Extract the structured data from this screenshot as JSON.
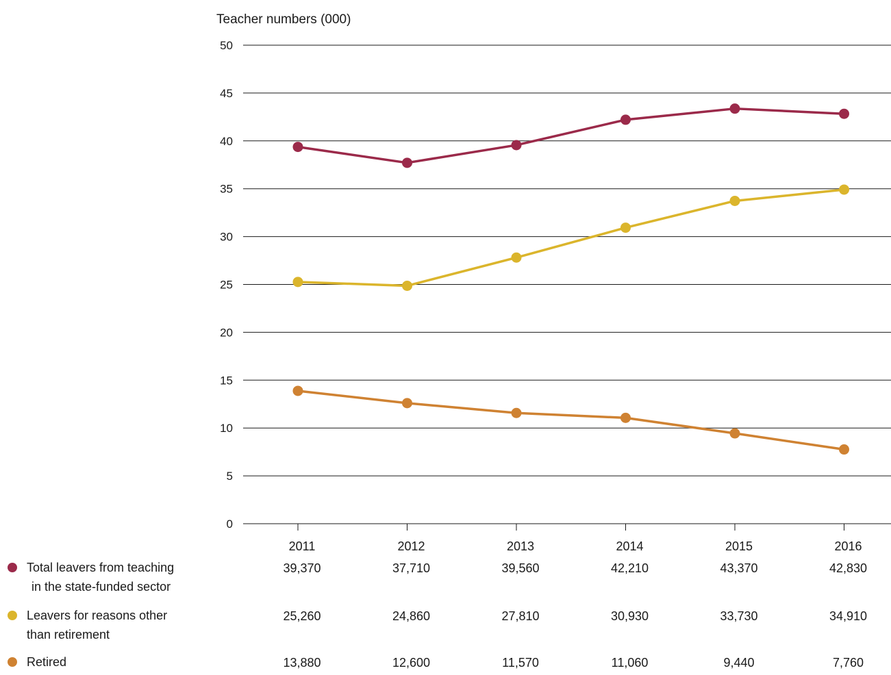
{
  "chart_data": {
    "type": "line",
    "ylabel": "Teacher numbers (000)",
    "ylim": [
      0,
      50
    ],
    "yticks": [
      0,
      5,
      10,
      15,
      20,
      25,
      30,
      35,
      40,
      45,
      50
    ],
    "grid": true,
    "categories": [
      "2011",
      "2012",
      "2013",
      "2014",
      "2015",
      "2016"
    ],
    "series": [
      {
        "name": [
          "Total leavers from teaching",
          "in the state-funded sector"
        ],
        "color": "#9b2a4a",
        "values": [
          39.37,
          37.71,
          39.56,
          42.21,
          43.37,
          42.83
        ],
        "labels": [
          "39,370",
          "37,710",
          "39,560",
          "42,210",
          "43,370",
          "42,830"
        ]
      },
      {
        "name": [
          "Leavers for reasons other",
          "than retirement"
        ],
        "color": "#dbb52c",
        "values": [
          25.26,
          24.86,
          27.81,
          30.93,
          33.73,
          34.91
        ],
        "labels": [
          "25,260",
          "24,860",
          "27,810",
          "30,930",
          "33,730",
          "34,910"
        ]
      },
      {
        "name": [
          "Retired"
        ],
        "color": "#cf8232",
        "values": [
          13.88,
          12.6,
          11.57,
          11.06,
          9.44,
          7.76
        ],
        "labels": [
          "13,880",
          "12,600",
          "11,570",
          "11,060",
          "9,440",
          "7,760"
        ]
      }
    ]
  }
}
